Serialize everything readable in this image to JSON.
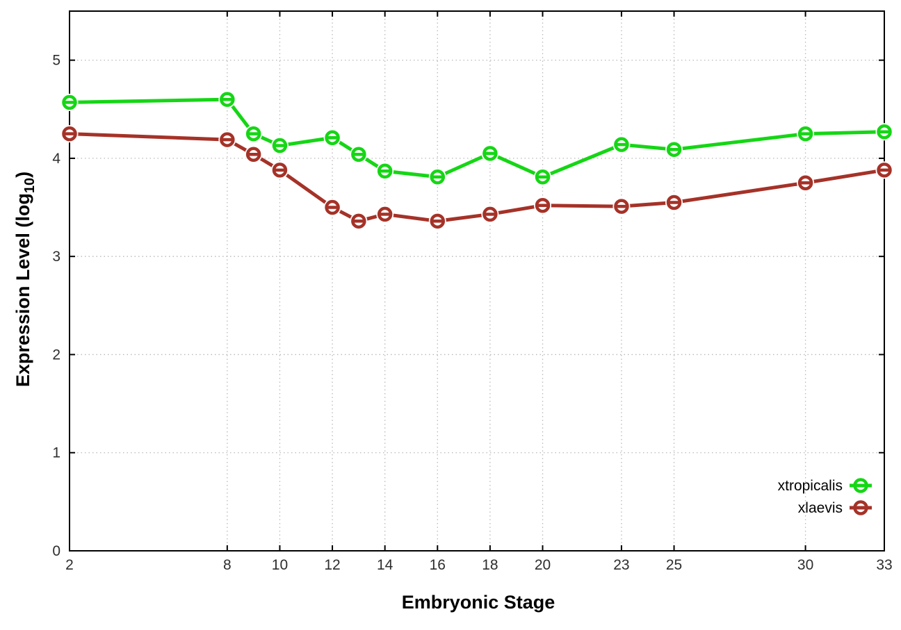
{
  "chart_data": {
    "type": "line",
    "title": "",
    "xlabel": "Embryonic Stage",
    "ylabel": "Expression Level (log10)",
    "ylabel_parts": {
      "main": "Expression Level (log",
      "sub": "10",
      "close": ")"
    },
    "x": [
      2,
      8,
      9,
      10,
      12,
      13,
      14,
      16,
      18,
      20,
      23,
      25,
      30,
      33
    ],
    "series": [
      {
        "name": "xtropicalis",
        "color": "#15d615",
        "values": [
          4.57,
          4.6,
          4.25,
          4.13,
          4.21,
          4.04,
          3.87,
          3.81,
          4.05,
          3.81,
          4.14,
          4.09,
          4.25,
          4.27
        ]
      },
      {
        "name": "xlaevis",
        "color": "#a53228",
        "values": [
          4.25,
          4.19,
          4.04,
          3.88,
          3.5,
          3.36,
          3.43,
          3.36,
          3.43,
          3.52,
          3.51,
          3.55,
          3.75,
          3.88
        ]
      }
    ],
    "x_ticks": [
      2,
      8,
      10,
      12,
      14,
      16,
      18,
      20,
      23,
      25,
      30,
      33
    ],
    "y_ticks": [
      0,
      1,
      2,
      3,
      4,
      5
    ],
    "xlim": [
      2,
      33
    ],
    "ylim": [
      0,
      5.5
    ],
    "grid": true,
    "legend_position": "inside-bottom-right",
    "legend_entries": [
      "xtropicalis",
      "xlaevis"
    ]
  }
}
